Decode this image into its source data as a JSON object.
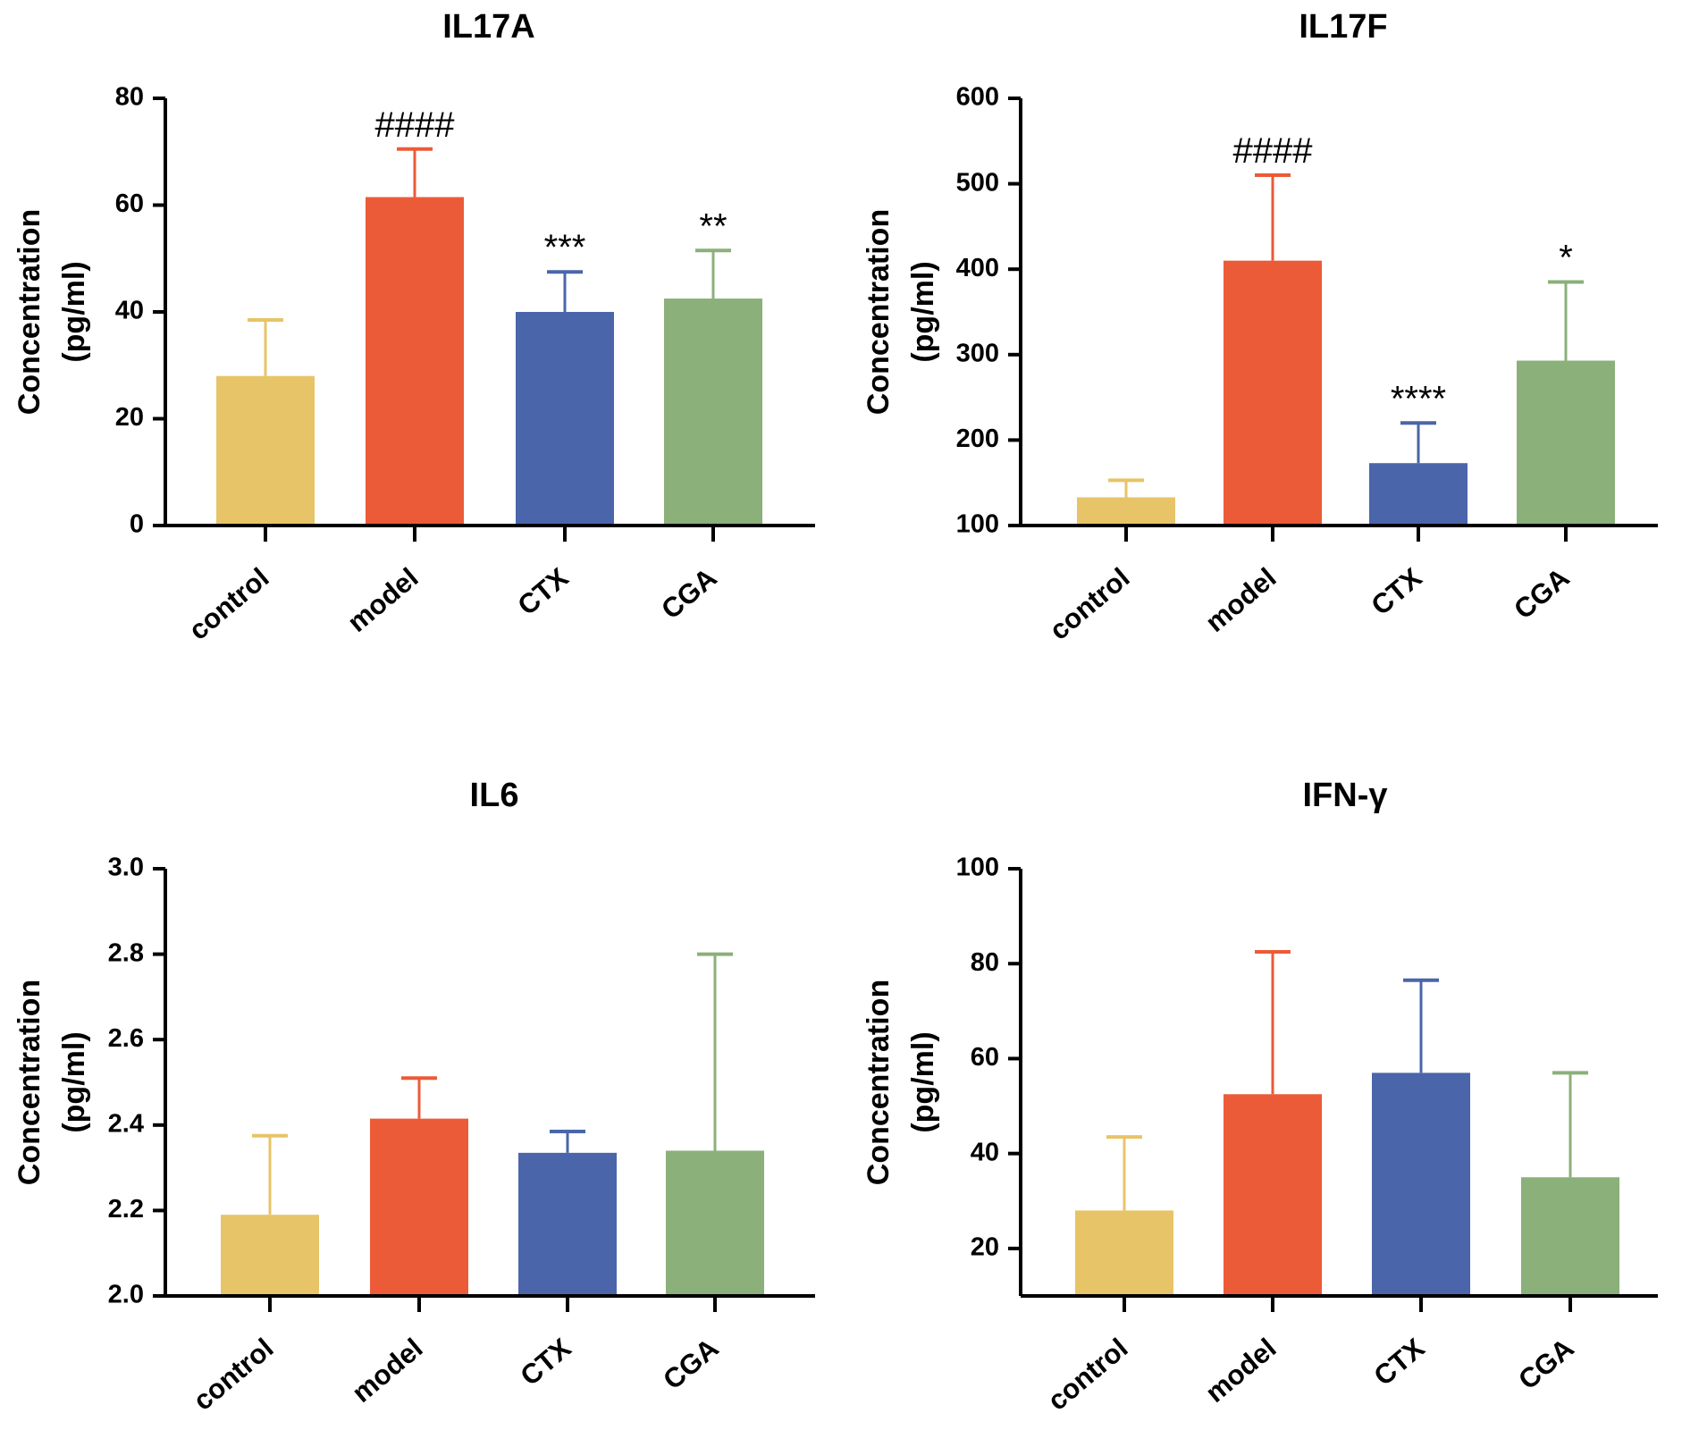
{
  "chart_data": [
    {
      "type": "bar",
      "title": "IL17A",
      "xlabel": "",
      "ylabel": "Concentration",
      "ylabel_unit": "(pg/ml)",
      "ylim": [
        0,
        80
      ],
      "yticks": [
        "0",
        "20",
        "40",
        "60",
        "80"
      ],
      "categories": [
        "control",
        "model",
        "CTX",
        "CGA"
      ],
      "colors": [
        "#E8C468",
        "#EB5B38",
        "#4A65AA",
        "#8BB07A"
      ],
      "values": [
        28,
        61.5,
        40,
        42.5
      ],
      "errors": [
        10.5,
        9,
        7.5,
        9
      ],
      "annotations": [
        "",
        "####",
        "***",
        "**"
      ]
    },
    {
      "type": "bar",
      "title": "IL17F",
      "xlabel": "",
      "ylabel": "Concentration",
      "ylabel_unit": "(pg/ml)",
      "ylim": [
        100,
        600
      ],
      "yticks": [
        "100",
        "200",
        "300",
        "400",
        "500",
        "600"
      ],
      "categories": [
        "control",
        "model",
        "CTX",
        "CGA"
      ],
      "colors": [
        "#E8C468",
        "#EB5B38",
        "#4A65AA",
        "#8BB07A"
      ],
      "values": [
        133,
        410,
        173,
        293
      ],
      "errors": [
        20,
        100,
        47,
        92
      ],
      "annotations": [
        "",
        "####",
        "****",
        "*"
      ]
    },
    {
      "type": "bar",
      "title": "IL6",
      "xlabel": "",
      "ylabel": "Concentration",
      "ylabel_unit": "(pg/ml)",
      "ylim": [
        2.0,
        3.0
      ],
      "yticks": [
        "2.0",
        "2.2",
        "2.4",
        "2.6",
        "2.8",
        "3.0"
      ],
      "categories": [
        "control",
        "model",
        "CTX",
        "CGA"
      ],
      "colors": [
        "#E8C468",
        "#EB5B38",
        "#4A65AA",
        "#8BB07A"
      ],
      "values": [
        2.19,
        2.415,
        2.335,
        2.34
      ],
      "errors": [
        0.185,
        0.095,
        0.05,
        0.46
      ],
      "annotations": [
        "",
        "",
        "",
        ""
      ]
    },
    {
      "type": "bar",
      "title": "IFN-γ",
      "xlabel": "",
      "ylabel": "Concentration",
      "ylabel_unit": "(pg/ml)",
      "ylim": [
        10,
        100
      ],
      "yticks": [
        "20",
        "40",
        "60",
        "80",
        "100"
      ],
      "categories": [
        "control",
        "model",
        "CTX",
        "CGA"
      ],
      "colors": [
        "#E8C468",
        "#EB5B38",
        "#4A65AA",
        "#8BB07A"
      ],
      "values": [
        28,
        52.5,
        57,
        35
      ],
      "errors": [
        15.5,
        30,
        19.5,
        22
      ],
      "annotations": [
        "",
        "",
        "",
        ""
      ]
    }
  ]
}
